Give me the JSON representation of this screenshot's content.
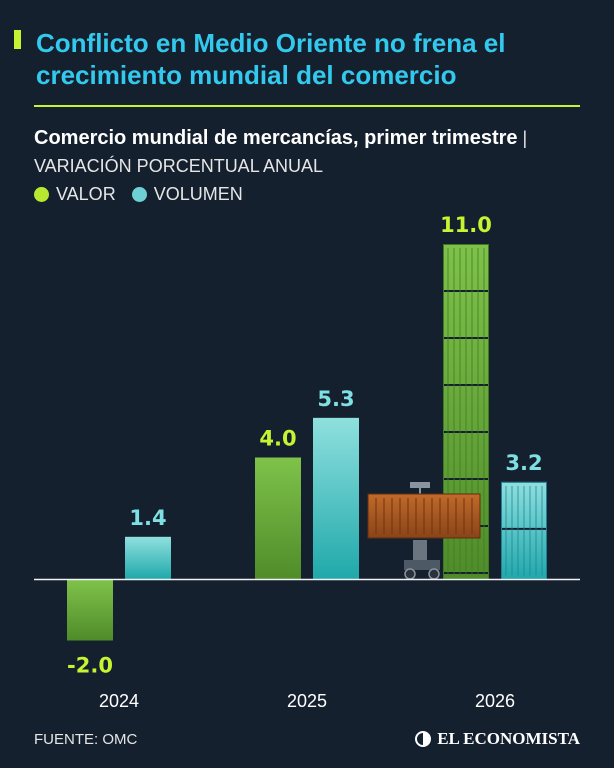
{
  "headline": "Conflicto en Medio Oriente no frena el crecimiento mundial del comercio",
  "subtitle_bold": "Comercio mundial de mercancías, primer trimestre",
  "subtitle_separator": " | ",
  "subtitle_light": "VARIACIÓN PORCENTUAL ANUAL",
  "legend": {
    "valor": "VALOR",
    "volumen": "VOLUMEN"
  },
  "colors": {
    "background": "#15202e",
    "headline": "#33c9ee",
    "accent": "#c6f432",
    "valor_label": "#c6f432",
    "volumen_label": "#7fe0e4",
    "valor_bar": "#6fae3a",
    "volumen_bar": "#5ccbc9",
    "legend_valor": "#b8e830",
    "legend_volumen": "#6ed0d4"
  },
  "source": "FUENTE: OMC",
  "brand": "EL ECONOMISTA",
  "chart_data": {
    "type": "bar",
    "categories": [
      "2024",
      "2025",
      "2026"
    ],
    "series": [
      {
        "name": "VALOR",
        "values": [
          -2.0,
          4.0,
          11.0
        ],
        "labels": [
          "-2.0",
          "4.0",
          "11.0"
        ]
      },
      {
        "name": "VOLUMEN",
        "values": [
          1.4,
          5.3,
          3.2
        ],
        "labels": [
          "1.4",
          "5.3",
          "3.2"
        ]
      }
    ],
    "ylim": [
      -2.0,
      11.0
    ],
    "grid": false,
    "legend_position": "top-left"
  }
}
